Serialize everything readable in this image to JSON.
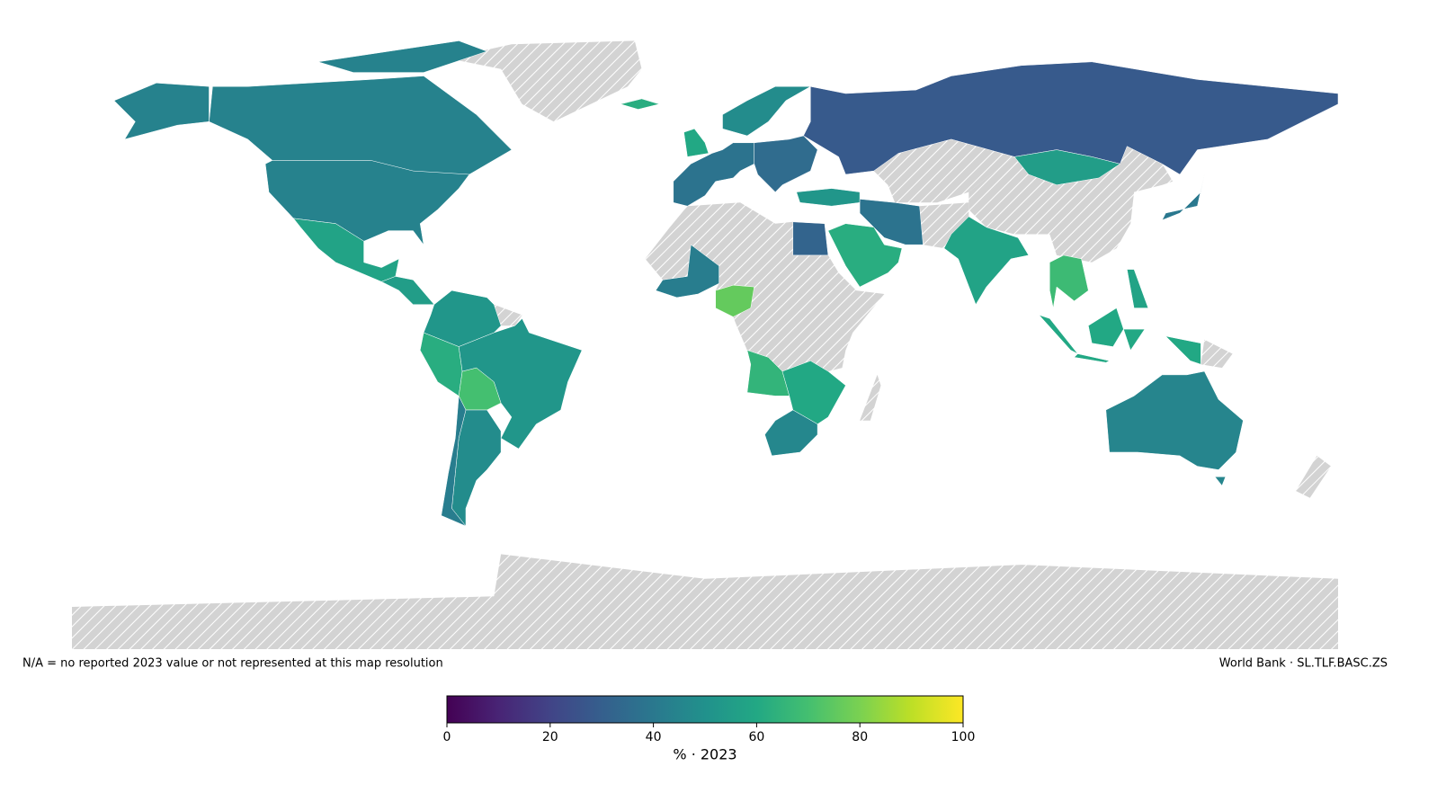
{
  "chart_data": {
    "type": "choropleth",
    "colormap": "viridis",
    "values": [
      44,
      44,
      58,
      55,
      52,
      62,
      70,
      52,
      48,
      42,
      38,
      60,
      48,
      35,
      28,
      52,
      38,
      62,
      32,
      42,
      76,
      65,
      60,
      46,
      58,
      55,
      68,
      60,
      58,
      40,
      45,
      62
    ],
    "note": "N/A = no reported 2023 value or not represented at this map resolution",
    "source": "World Bank · SL.TLF.BASC.ZS",
    "colorbar": {
      "label": "% · 2023",
      "lim": [
        0,
        100
      ],
      "ticks": [
        0,
        20,
        40,
        60,
        80,
        100
      ]
    }
  }
}
